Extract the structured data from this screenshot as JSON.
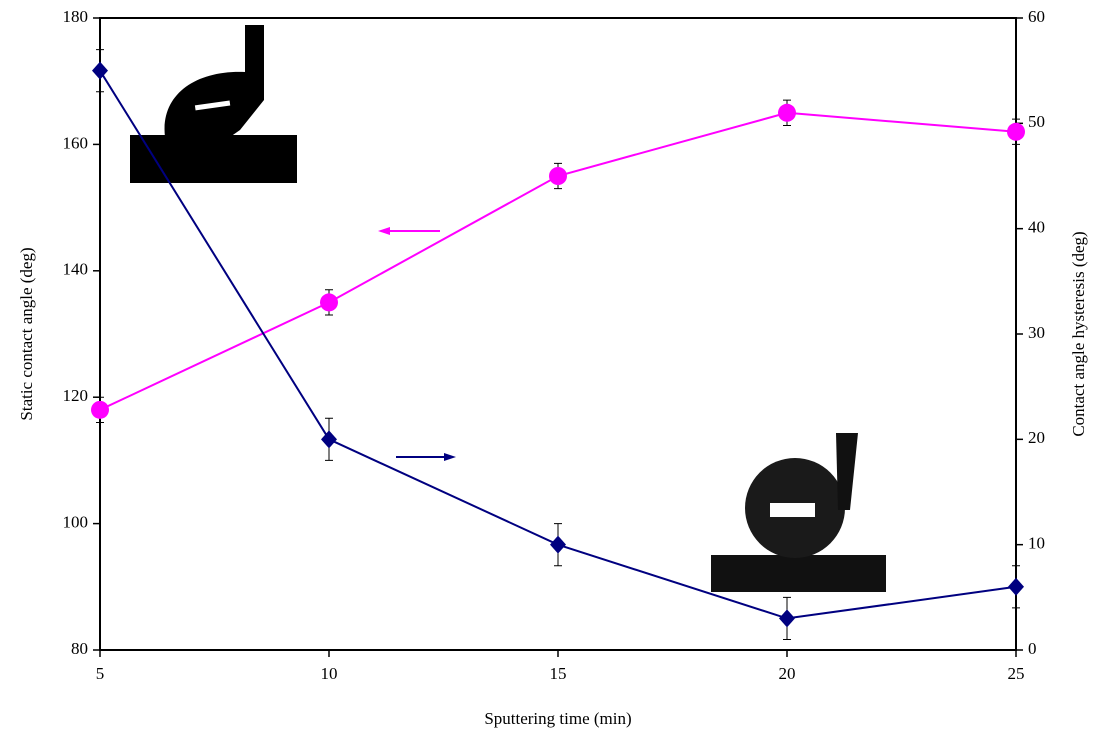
{
  "chart_data": {
    "type": "line",
    "x_label": "Sputtering time (min)",
    "y_label": "Static contact angle (deg)",
    "y2_label": "Contact angle hysteresis (deg)",
    "x": [
      5,
      10,
      15,
      20,
      25
    ],
    "xlim": [
      5,
      25
    ],
    "xticks": [
      5,
      10,
      15,
      20,
      25
    ],
    "ylim": [
      80,
      180
    ],
    "yticks": [
      80,
      100,
      120,
      140,
      160,
      180
    ],
    "y2lim": [
      0,
      60
    ],
    "y2ticks": [
      0,
      10,
      20,
      30,
      40,
      50,
      60
    ],
    "series": [
      {
        "color": "#ff00ff",
        "marker": "circle",
        "axis": "y",
        "values": [
          118,
          135,
          155,
          165,
          162
        ],
        "errors": [
          2,
          2,
          2,
          2,
          2
        ]
      },
      {
        "color": "#000080",
        "marker": "diamond",
        "axis": "y2",
        "values": [
          55,
          20,
          10,
          3,
          6
        ],
        "errors": [
          2,
          2,
          2,
          2,
          2
        ]
      }
    ]
  }
}
